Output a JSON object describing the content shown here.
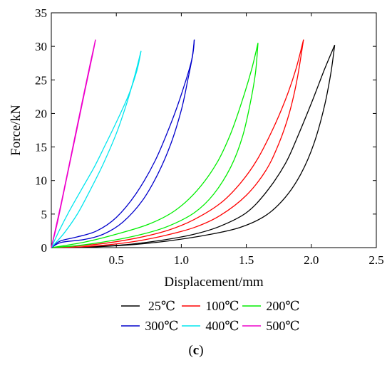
{
  "chart_data": {
    "type": "line",
    "title": "",
    "xlabel": "Displacement/mm",
    "ylabel": "Force/kN",
    "xlim": [
      0,
      2.5
    ],
    "ylim": [
      0,
      35
    ],
    "x_ticks": [
      "0.5",
      "1.0",
      "1.5",
      "2.0",
      "2.5"
    ],
    "y_ticks": [
      "0",
      "5",
      "10",
      "15",
      "20",
      "25",
      "30",
      "35"
    ],
    "grid": false,
    "legend_position": "below",
    "caption_prefix": "(",
    "caption_letter": "c",
    "caption_suffix": ")",
    "series": [
      {
        "name": "25℃",
        "color": "#000000",
        "loading": [
          [
            0.0,
            0
          ],
          [
            0.3,
            0.1
          ],
          [
            0.6,
            0.4
          ],
          [
            0.9,
            1.0
          ],
          [
            1.2,
            1.9
          ],
          [
            1.45,
            3.0
          ],
          [
            1.65,
            4.8
          ],
          [
            1.8,
            7.5
          ],
          [
            1.92,
            11.0
          ],
          [
            2.02,
            15.5
          ],
          [
            2.1,
            21.0
          ],
          [
            2.15,
            26.0
          ],
          [
            2.18,
            30.2
          ]
        ],
        "unloading": [
          [
            2.18,
            30.2
          ],
          [
            2.1,
            26.5
          ],
          [
            2.0,
            21.5
          ],
          [
            1.9,
            16.8
          ],
          [
            1.8,
            12.5
          ],
          [
            1.65,
            8.2
          ],
          [
            1.5,
            5.2
          ],
          [
            1.3,
            3.2
          ],
          [
            1.1,
            2.0
          ],
          [
            0.85,
            1.1
          ],
          [
            0.55,
            0.4
          ],
          [
            0.2,
            0.05
          ],
          [
            0.0,
            0
          ]
        ]
      },
      {
        "name": "100℃",
        "color": "#ff0000",
        "loading": [
          [
            0.0,
            0
          ],
          [
            0.3,
            0.2
          ],
          [
            0.6,
            0.8
          ],
          [
            0.85,
            1.7
          ],
          [
            1.1,
            3.0
          ],
          [
            1.3,
            4.8
          ],
          [
            1.5,
            7.8
          ],
          [
            1.65,
            11.5
          ],
          [
            1.75,
            15.5
          ],
          [
            1.83,
            20.0
          ],
          [
            1.89,
            25.0
          ],
          [
            1.94,
            31.0
          ]
        ],
        "unloading": [
          [
            1.94,
            31.0
          ],
          [
            1.88,
            26.5
          ],
          [
            1.8,
            22.0
          ],
          [
            1.7,
            17.5
          ],
          [
            1.58,
            13.0
          ],
          [
            1.45,
            9.5
          ],
          [
            1.3,
            6.6
          ],
          [
            1.1,
            4.2
          ],
          [
            0.9,
            2.6
          ],
          [
            0.65,
            1.4
          ],
          [
            0.35,
            0.5
          ],
          [
            0.0,
            0
          ]
        ]
      },
      {
        "name": "200℃",
        "color": "#00ee00",
        "loading": [
          [
            0.0,
            0
          ],
          [
            0.2,
            0.3
          ],
          [
            0.45,
            1.0
          ],
          [
            0.7,
            2.0
          ],
          [
            0.9,
            3.2
          ],
          [
            1.1,
            5.2
          ],
          [
            1.25,
            8.0
          ],
          [
            1.38,
            12.0
          ],
          [
            1.47,
            16.5
          ],
          [
            1.53,
            21.5
          ],
          [
            1.57,
            26.0
          ],
          [
            1.59,
            30.5
          ]
        ],
        "unloading": [
          [
            1.59,
            30.5
          ],
          [
            1.54,
            26.5
          ],
          [
            1.47,
            22.0
          ],
          [
            1.38,
            17.0
          ],
          [
            1.27,
            12.5
          ],
          [
            1.12,
            8.5
          ],
          [
            0.95,
            5.5
          ],
          [
            0.75,
            3.5
          ],
          [
            0.5,
            2.0
          ],
          [
            0.25,
            0.8
          ],
          [
            0.0,
            0
          ]
        ]
      },
      {
        "name": "300℃",
        "color": "#0000cc",
        "loading": [
          [
            0.0,
            0
          ],
          [
            0.08,
            0.8
          ],
          [
            0.25,
            1.2
          ],
          [
            0.4,
            2.0
          ],
          [
            0.55,
            3.8
          ],
          [
            0.7,
            7.0
          ],
          [
            0.82,
            11.0
          ],
          [
            0.92,
            15.5
          ],
          [
            1.0,
            20.5
          ],
          [
            1.05,
            25.0
          ],
          [
            1.09,
            29.0
          ],
          [
            1.1,
            31.0
          ]
        ],
        "unloading": [
          [
            1.1,
            31.0
          ],
          [
            1.08,
            28.0
          ],
          [
            1.02,
            24.0
          ],
          [
            0.93,
            19.0
          ],
          [
            0.8,
            13.0
          ],
          [
            0.65,
            8.0
          ],
          [
            0.5,
            4.5
          ],
          [
            0.35,
            2.5
          ],
          [
            0.2,
            1.6
          ],
          [
            0.07,
            1.0
          ],
          [
            0.0,
            0
          ]
        ]
      },
      {
        "name": "400℃",
        "color": "#00e5ee",
        "loading": [
          [
            0.0,
            0
          ],
          [
            0.1,
            2.2
          ],
          [
            0.2,
            5.0
          ],
          [
            0.3,
            8.6
          ],
          [
            0.4,
            12.5
          ],
          [
            0.5,
            17.0
          ],
          [
            0.58,
            21.5
          ],
          [
            0.64,
            25.5
          ],
          [
            0.69,
            29.3
          ]
        ],
        "unloading": [
          [
            0.69,
            29.3
          ],
          [
            0.66,
            26.5
          ],
          [
            0.6,
            23.0
          ],
          [
            0.52,
            19.5
          ],
          [
            0.42,
            15.5
          ],
          [
            0.33,
            12.0
          ],
          [
            0.23,
            8.6
          ],
          [
            0.14,
            5.5
          ],
          [
            0.06,
            2.5
          ],
          [
            0.0,
            0
          ]
        ]
      },
      {
        "name": "500℃",
        "color": "#ee00cc",
        "loading": [
          [
            0.0,
            0
          ],
          [
            0.08,
            7.0
          ],
          [
            0.16,
            14.5
          ],
          [
            0.24,
            22.0
          ],
          [
            0.3,
            27.5
          ],
          [
            0.34,
            31.0
          ]
        ],
        "unloading": [
          [
            0.34,
            31.0
          ],
          [
            0.32,
            29.0
          ],
          [
            0.26,
            23.5
          ],
          [
            0.19,
            17.0
          ],
          [
            0.12,
            10.5
          ],
          [
            0.05,
            4.0
          ],
          [
            0.0,
            0
          ]
        ]
      }
    ]
  }
}
